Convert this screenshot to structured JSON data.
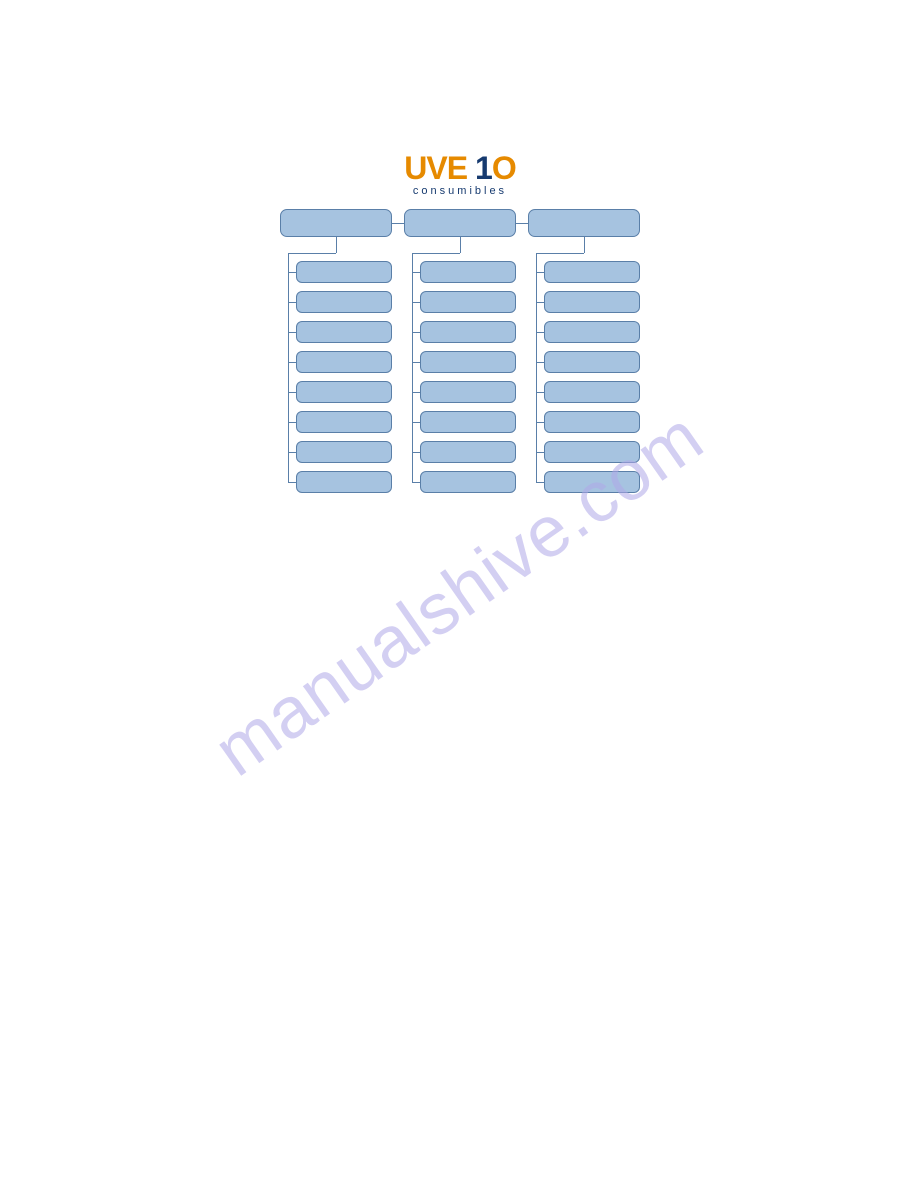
{
  "logo": {
    "main_left": "UVE",
    "main_num": "1",
    "main_right": "O",
    "sub": "consumibles"
  },
  "watermark": "manualshive.com",
  "chart": {
    "type": "tree",
    "box_fill": "#a6c3e0",
    "box_border": "#5a7fa8",
    "box_border_radius": 7,
    "line_color": "#5a7fa8",
    "top_box_height": 28,
    "sub_box_height": 22,
    "column_gap": 12,
    "row_gap": 8,
    "columns": [
      {
        "top": "",
        "children": [
          "",
          "",
          "",
          "",
          "",
          "",
          "",
          ""
        ]
      },
      {
        "top": "",
        "children": [
          "",
          "",
          "",
          "",
          "",
          "",
          "",
          ""
        ]
      },
      {
        "top": "",
        "children": [
          "",
          "",
          "",
          "",
          "",
          "",
          "",
          ""
        ]
      }
    ]
  },
  "colors": {
    "logo_orange": "#e68a00",
    "logo_navy": "#163a6f",
    "watermark": "#b0a8e8",
    "background": "#ffffff"
  }
}
